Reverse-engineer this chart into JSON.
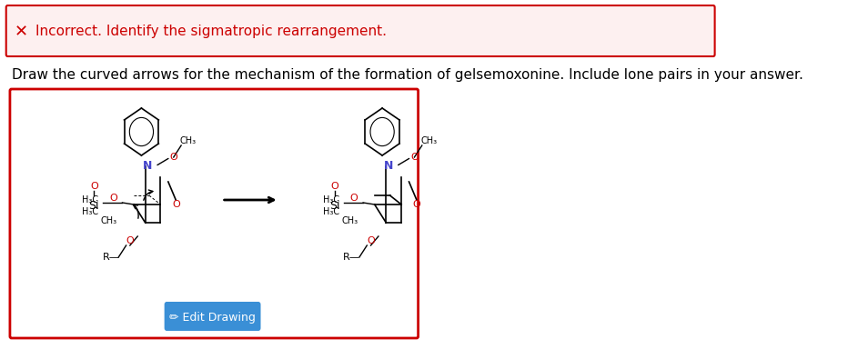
{
  "error_banner_bg": "#fdf0f0",
  "error_banner_border": "#cc0000",
  "error_icon_color": "#cc0000",
  "error_text": "Incorrect. Identify the sigmatropic rearrangement.",
  "error_text_color": "#cc0000",
  "instruction_text": "Draw the curved arrows for the mechanism of the formation of gelsemoxonine. Include lone pairs in your answer.",
  "instruction_text_color": "#000000",
  "drawing_box_bg": "#ffffff",
  "drawing_box_border": "#cc0000",
  "button_color": "#3a8fd6",
  "button_text": "✏ Edit Drawing",
  "button_text_color": "#ffffff",
  "bg_color": "#ffffff"
}
